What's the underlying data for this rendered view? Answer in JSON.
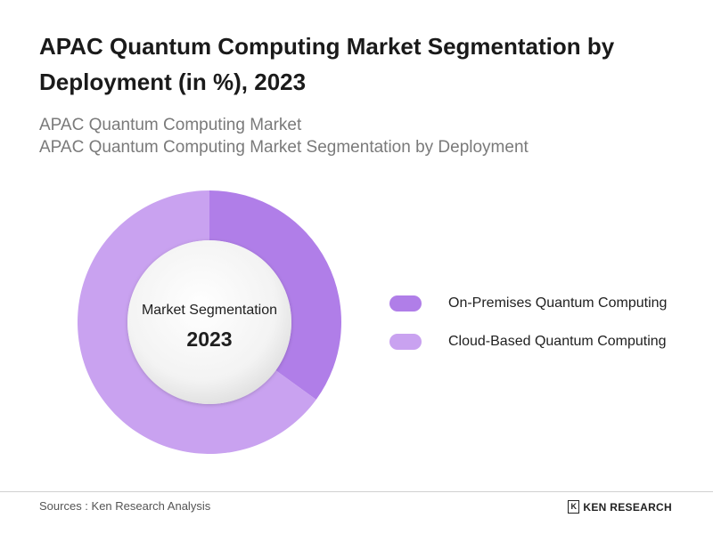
{
  "header": {
    "title": "APAC Quantum Computing Market Segmentation by Deployment (in %), 2023",
    "subtitle_line1": "APAC Quantum Computing Market",
    "subtitle_line2": "APAC Quantum Computing Market Segmentation by Deployment"
  },
  "chart_data": {
    "type": "pie",
    "donut": true,
    "center_label": "Market Segmentation",
    "center_year": "2023",
    "legend_position": "right",
    "series": [
      {
        "name": "On-Premises Quantum Computing",
        "value": 35,
        "color": "#b07ee8"
      },
      {
        "name": "Cloud-Based Quantum Computing",
        "value": 65,
        "color": "#c9a2f0"
      }
    ]
  },
  "footer": {
    "source": "Sources : Ken Research Analysis",
    "brand_mark": "K",
    "brand": "KEN RESEARCH"
  }
}
